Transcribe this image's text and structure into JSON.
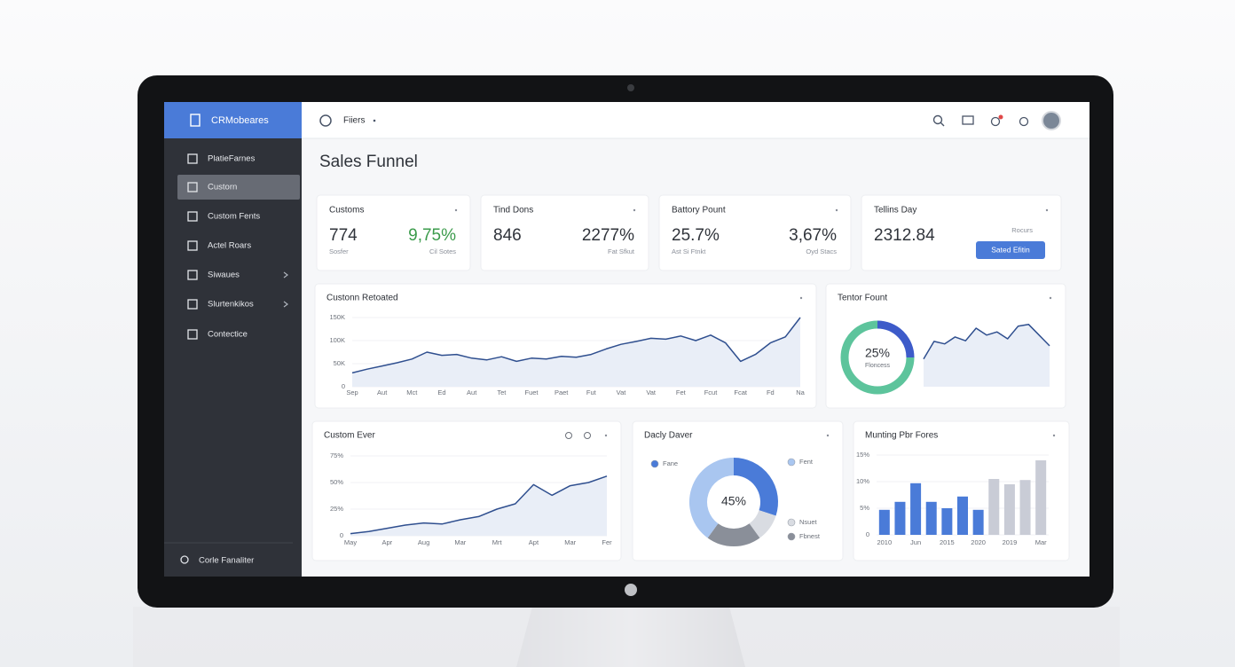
{
  "sidebar": {
    "brand": "CRMobeares",
    "items": [
      "PlatieFarnes",
      "Custorn",
      "Custom Fents",
      "Actel Roars",
      "Siwaues",
      "Slurtenkikos",
      "Contectice"
    ],
    "active_item": 1,
    "footer": "Corle Fanaliter"
  },
  "topbar": {
    "filter": "Fiiers"
  },
  "page_title": "Sales Funnel",
  "kpis": [
    {
      "title": "Customs",
      "value": "774",
      "delta": "9,75%",
      "delta_color": "#3b9b4b",
      "sub_left": "Sosfer",
      "sub_right": "Cil Sotes"
    },
    {
      "title": "Tind Dons",
      "value": "846",
      "delta": "2277%",
      "sub_right": "Fat Sfkut"
    },
    {
      "title": "Battory Pount",
      "value": "25.7%",
      "delta": "3,67%",
      "sub_left": "Ast Si Ftnkt",
      "sub_right": "Oyd Stacs"
    },
    {
      "title": "Tellins Day",
      "value": "2312.84",
      "note": "Rocurs",
      "button": "Sated Efitin"
    }
  ],
  "chart_data": [
    {
      "type": "line",
      "title": "Custonn Retoated",
      "categories": [
        "Sep",
        null,
        "Aut",
        null,
        "Mct",
        null,
        "Ed",
        null,
        "Aut",
        null,
        "Tet",
        null,
        "Fuet",
        null,
        "Paet",
        null,
        "Fut",
        null,
        "Vat",
        null,
        "Vat",
        null,
        "Fet",
        null,
        "Fcut",
        null,
        "Fcat",
        null,
        "Fd",
        null,
        "Na"
      ],
      "values": [
        30000,
        38000,
        45000,
        52000,
        60000,
        75000,
        68000,
        70000,
        62000,
        58000,
        65000,
        55000,
        62000,
        60000,
        66000,
        64000,
        70000,
        82000,
        92000,
        98000,
        105000,
        103000,
        110000,
        100000,
        112000,
        95000,
        55000,
        70000,
        95000,
        108000,
        150000
      ],
      "ylim": [
        0,
        150000
      ],
      "yticks": [
        0,
        {
          "value": 50000,
          "label": "50K"
        },
        {
          "value": 100000,
          "label": "100K"
        },
        {
          "value": 150000,
          "label": "150K"
        }
      ],
      "color": "#2f4f8f",
      "area_color": "#e9eef7"
    },
    {
      "type": "donut",
      "title": "Tentor Fount",
      "values": [
        25,
        75
      ],
      "colors": [
        "#3d5bc9",
        "#5dc49c"
      ],
      "center_label": "25%",
      "center_caption": "Floncess",
      "trend": {
        "values": [
          44,
          72,
          68,
          79,
          73,
          93,
          82,
          87,
          76,
          96,
          99,
          82,
          65
        ],
        "ylim": [
          0,
          100
        ],
        "color": "#2f4f8f",
        "area_color": "#e9eef7"
      }
    },
    {
      "type": "line",
      "title": "Custom Ever",
      "categories": [
        "May",
        null,
        "Apr",
        null,
        "Aug",
        null,
        "Mar",
        null,
        "Mrt",
        null,
        "Apt",
        null,
        "Mar",
        null,
        "Fer"
      ],
      "values": [
        2,
        4,
        7,
        10,
        12,
        11,
        15,
        18,
        25,
        30,
        48,
        38,
        47,
        50,
        56
      ],
      "ylim": [
        0,
        75
      ],
      "yticks": [
        0,
        {
          "value": 25,
          "label": "25%"
        },
        {
          "value": 50,
          "label": "50%"
        },
        {
          "value": 75,
          "label": "75%"
        }
      ],
      "color": "#2f4f8f",
      "area_color": "#e9eef7"
    },
    {
      "type": "donut",
      "title": "Dacly Daver",
      "categories": [
        "Fane",
        "Nsuet",
        "Fbnest",
        "Fent"
      ],
      "values": [
        30,
        10,
        20,
        40
      ],
      "colors": [
        "#4a7bd8",
        "#d9dce2",
        "#8a8f99",
        "#a9c6f0"
      ],
      "center_label": "45%"
    },
    {
      "type": "bar",
      "title": "Munting Pbr Fores",
      "categories": [
        "2010",
        null,
        "Jun",
        null,
        "2015",
        null,
        "2020",
        null,
        "2019",
        null,
        "Mar"
      ],
      "values": [
        4.7,
        6.2,
        9.7,
        6.2,
        5,
        7.2,
        4.7,
        10.5,
        9.5,
        10.3,
        14
      ],
      "colors": [
        "#4a7bd8",
        "#4a7bd8",
        "#4a7bd8",
        "#4a7bd8",
        "#4a7bd8",
        "#4a7bd8",
        "#4a7bd8",
        "#c9ccd6",
        "#c9ccd6",
        "#c9ccd6",
        "#c9ccd6"
      ],
      "ylim": [
        0,
        15
      ],
      "yticks": [
        0,
        {
          "value": 5,
          "label": "5%"
        },
        {
          "value": 10,
          "label": "10%"
        },
        {
          "value": 15,
          "label": "15%"
        }
      ]
    }
  ]
}
